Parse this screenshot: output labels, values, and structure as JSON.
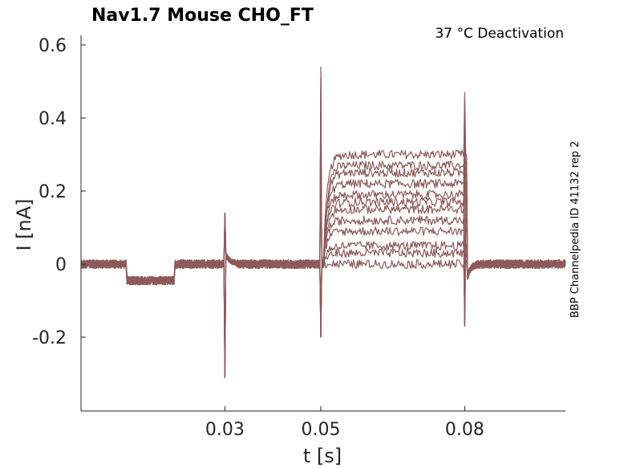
{
  "chart_data": {
    "type": "line",
    "title": "Nav1.7  Mouse  CHO_FT",
    "annotation": "37 °C  Deactivation",
    "side_label": "BBP Channelpedia ID 41132 rep 2",
    "xlabel": "t [s]",
    "ylabel": "I [nA]",
    "xlim": [
      0.0,
      0.101
    ],
    "ylim": [
      -0.4,
      0.63
    ],
    "xticks": [
      0.03,
      0.05,
      0.08
    ],
    "xtick_labels": [
      "0.03",
      "0.05",
      "0.08"
    ],
    "yticks": [
      -0.2,
      0,
      0.2,
      0.4,
      0.6
    ],
    "ytick_labels": [
      "-0.2",
      "0",
      "0.2",
      "0.4",
      "0.6"
    ],
    "grid": false,
    "color": "#8c5a5a",
    "protocol": {
      "prepulse": [
        0.0095,
        0.0195,
        -0.045
      ],
      "transient_1": {
        "t": 0.03,
        "min": -0.31,
        "max": 0.14
      },
      "transient_2": {
        "t": 0.05,
        "min": -0.2,
        "max": 0.54
      },
      "transient_3": {
        "t": 0.08,
        "min": -0.17,
        "max": 0.47
      },
      "step_interval": [
        0.0505,
        0.0805
      ]
    },
    "series": [
      {
        "values": [
          0.3
        ]
      },
      {
        "values": [
          0.27
        ]
      },
      {
        "values": [
          0.25
        ]
      },
      {
        "values": [
          0.22
        ]
      },
      {
        "values": [
          0.19
        ]
      },
      {
        "values": [
          0.17
        ]
      },
      {
        "values": [
          0.15
        ]
      },
      {
        "values": [
          0.12
        ]
      },
      {
        "values": [
          0.09
        ]
      },
      {
        "values": [
          0.05
        ]
      },
      {
        "values": [
          0.03
        ]
      },
      {
        "values": [
          0.0
        ]
      }
    ]
  }
}
